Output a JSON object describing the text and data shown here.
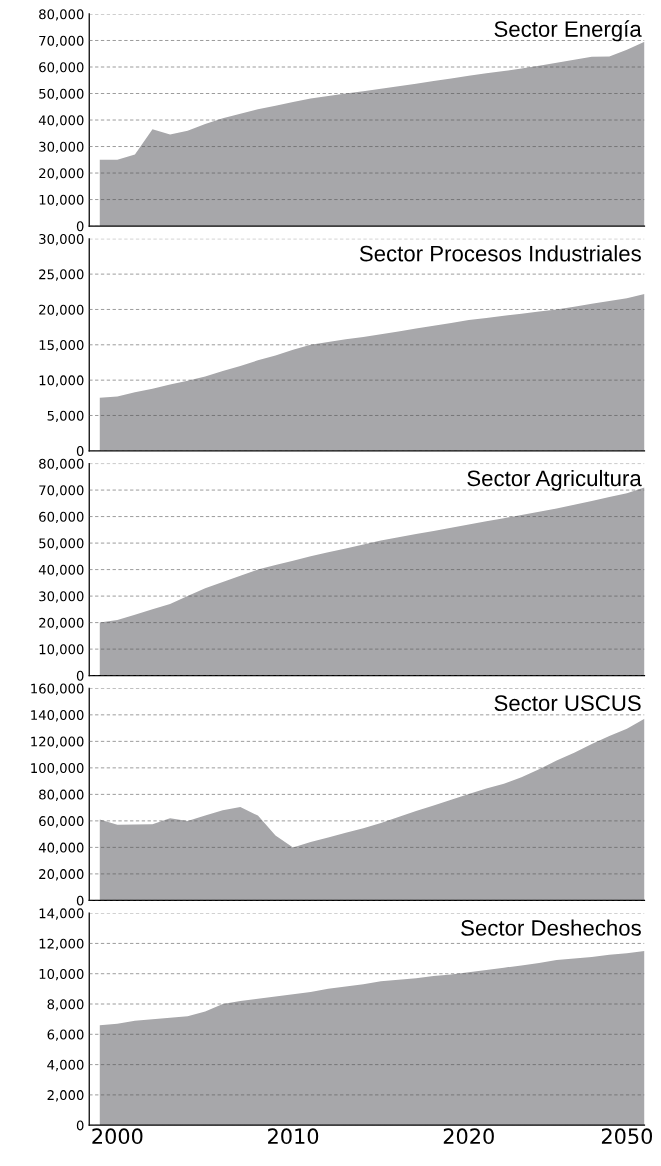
{
  "chart_data": [
    {
      "type": "area",
      "title": "Sector Energía",
      "categories": [
        null,
        "2000",
        null,
        null,
        null,
        null,
        null,
        null,
        null,
        null,
        null,
        "2010",
        null,
        null,
        null,
        null,
        null,
        null,
        null,
        null,
        null,
        "2020",
        null,
        null,
        null,
        null,
        null,
        null,
        null,
        null,
        "2050",
        null
      ],
      "series": [
        {
          "color": "#a7a7aa",
          "values": [
            25000,
            25000,
            27000,
            36500,
            34500,
            36000,
            38500,
            40700,
            42400,
            44100,
            45400,
            46800,
            48100,
            49100,
            50000,
            50900,
            51800,
            52700,
            53700,
            54700,
            55700,
            56700,
            57600,
            58500,
            59400,
            60500,
            61600,
            62700,
            63900,
            64000,
            66500,
            69500
          ]
        }
      ],
      "ylim": [
        0,
        80000
      ],
      "yticks": [
        0,
        {
          "value": 10000,
          "label": "10,000"
        },
        {
          "value": 20000,
          "label": "20,000"
        },
        {
          "value": 30000,
          "label": "30,000"
        },
        {
          "value": 40000,
          "label": "40,000"
        },
        {
          "value": 50000,
          "label": "50,000"
        },
        {
          "value": 60000,
          "label": "60,000"
        },
        {
          "value": 70000,
          "label": "70,000"
        },
        {
          "value": 80000,
          "label": "80,000"
        }
      ],
      "grid": "y",
      "tick_labels": "y"
    },
    {
      "type": "area",
      "title": "Sector Procesos Industriales",
      "categories": [
        null,
        "2000",
        null,
        null,
        null,
        null,
        null,
        null,
        null,
        null,
        null,
        "2010",
        null,
        null,
        null,
        null,
        null,
        null,
        null,
        null,
        null,
        "2020",
        null,
        null,
        null,
        null,
        null,
        null,
        null,
        null,
        "2050",
        null
      ],
      "series": [
        {
          "color": "#a7a7aa",
          "values": [
            7500,
            7700,
            8300,
            8800,
            9400,
            9900,
            10500,
            11300,
            12000,
            12800,
            13500,
            14300,
            15000,
            15400,
            15800,
            16100,
            16500,
            16900,
            17300,
            17700,
            18100,
            18500,
            18800,
            19100,
            19400,
            19700,
            20000,
            20400,
            20800,
            21200,
            21600,
            22200
          ]
        }
      ],
      "ylim": [
        0,
        30000
      ],
      "yticks": [
        0,
        {
          "value": 5000,
          "label": "5,000"
        },
        {
          "value": 10000,
          "label": "10,000"
        },
        {
          "value": 15000,
          "label": "15,000"
        },
        {
          "value": 20000,
          "label": "20,000"
        },
        {
          "value": 25000,
          "label": "25,000"
        },
        {
          "value": 30000,
          "label": "30,000"
        }
      ],
      "grid": "y",
      "tick_labels": "y"
    },
    {
      "type": "area",
      "title": "Sector Agricultura",
      "categories": [
        null,
        "2000",
        null,
        null,
        null,
        null,
        null,
        null,
        null,
        null,
        null,
        "2010",
        null,
        null,
        null,
        null,
        null,
        null,
        null,
        null,
        null,
        "2020",
        null,
        null,
        null,
        null,
        null,
        null,
        null,
        null,
        "2050",
        null
      ],
      "series": [
        {
          "color": "#a7a7aa",
          "values": [
            20000,
            21000,
            23000,
            25000,
            27000,
            30000,
            33000,
            35300,
            37700,
            40000,
            41700,
            43300,
            45000,
            46500,
            48000,
            49500,
            51000,
            52200,
            53400,
            54600,
            55800,
            57000,
            58200,
            59400,
            60600,
            61800,
            63000,
            64500,
            65900,
            67400,
            68800,
            71000
          ]
        }
      ],
      "ylim": [
        0,
        80000
      ],
      "yticks": [
        0,
        {
          "value": 10000,
          "label": "10,000"
        },
        {
          "value": 20000,
          "label": "20,000"
        },
        {
          "value": 30000,
          "label": "30,000"
        },
        {
          "value": 40000,
          "label": "40,000"
        },
        {
          "value": 50000,
          "label": "50,000"
        },
        {
          "value": 60000,
          "label": "60,000"
        },
        {
          "value": 70000,
          "label": "70,000"
        },
        {
          "value": 80000,
          "label": "80,000"
        }
      ],
      "grid": "y",
      "tick_labels": "y"
    },
    {
      "type": "area",
      "title": "Sector USCUS",
      "categories": [
        null,
        "2000",
        null,
        null,
        null,
        null,
        null,
        null,
        null,
        null,
        null,
        "2010",
        null,
        null,
        null,
        null,
        null,
        null,
        null,
        null,
        null,
        "2020",
        null,
        null,
        null,
        null,
        null,
        null,
        null,
        null,
        "2050",
        null
      ],
      "series": [
        {
          "color": "#a7a7aa",
          "values": [
            61000,
            57000,
            57200,
            57400,
            62000,
            60000,
            64000,
            68000,
            70500,
            64000,
            49000,
            40000,
            44000,
            47500,
            51000,
            54500,
            58400,
            63000,
            67400,
            71600,
            75900,
            80200,
            84400,
            88000,
            93000,
            99000,
            105500,
            111500,
            118000,
            124000,
            129500,
            137000
          ]
        }
      ],
      "ylim": [
        0,
        160000
      ],
      "yticks": [
        0,
        {
          "value": 20000,
          "label": "20,000"
        },
        {
          "value": 40000,
          "label": "40,000"
        },
        {
          "value": 60000,
          "label": "60,000"
        },
        {
          "value": 80000,
          "label": "80,000"
        },
        {
          "value": 100000,
          "label": "100,000"
        },
        {
          "value": 120000,
          "label": "120,000"
        },
        {
          "value": 140000,
          "label": "140,000"
        },
        {
          "value": 160000,
          "label": "160,000"
        }
      ],
      "grid": "y",
      "tick_labels": "y"
    },
    {
      "type": "area",
      "title": "Sector Deshechos",
      "categories": [
        null,
        "2000",
        null,
        null,
        null,
        null,
        null,
        null,
        null,
        null,
        null,
        "2010",
        null,
        null,
        null,
        null,
        null,
        null,
        null,
        null,
        null,
        "2020",
        null,
        null,
        null,
        null,
        null,
        null,
        null,
        null,
        "2050",
        null
      ],
      "series": [
        {
          "color": "#a7a7aa",
          "values": [
            6600,
            6700,
            6900,
            7000,
            7100,
            7200,
            7500,
            8000,
            8200,
            8350,
            8500,
            8650,
            8800,
            9000,
            9150,
            9300,
            9500,
            9600,
            9700,
            9850,
            9950,
            10100,
            10250,
            10400,
            10550,
            10700,
            10900,
            11000,
            11100,
            11250,
            11350,
            11500
          ]
        }
      ],
      "ylim": [
        0,
        14000
      ],
      "yticks": [
        0,
        {
          "value": 2000,
          "label": "2,000"
        },
        {
          "value": 4000,
          "label": "4,000"
        },
        {
          "value": 6000,
          "label": "6,000"
        },
        {
          "value": 8000,
          "label": "8,000"
        },
        {
          "value": 10000,
          "label": "10,000"
        },
        {
          "value": 12000,
          "label": "12,000"
        },
        {
          "value": 14000,
          "label": "14,000"
        }
      ],
      "grid": "y"
    }
  ]
}
